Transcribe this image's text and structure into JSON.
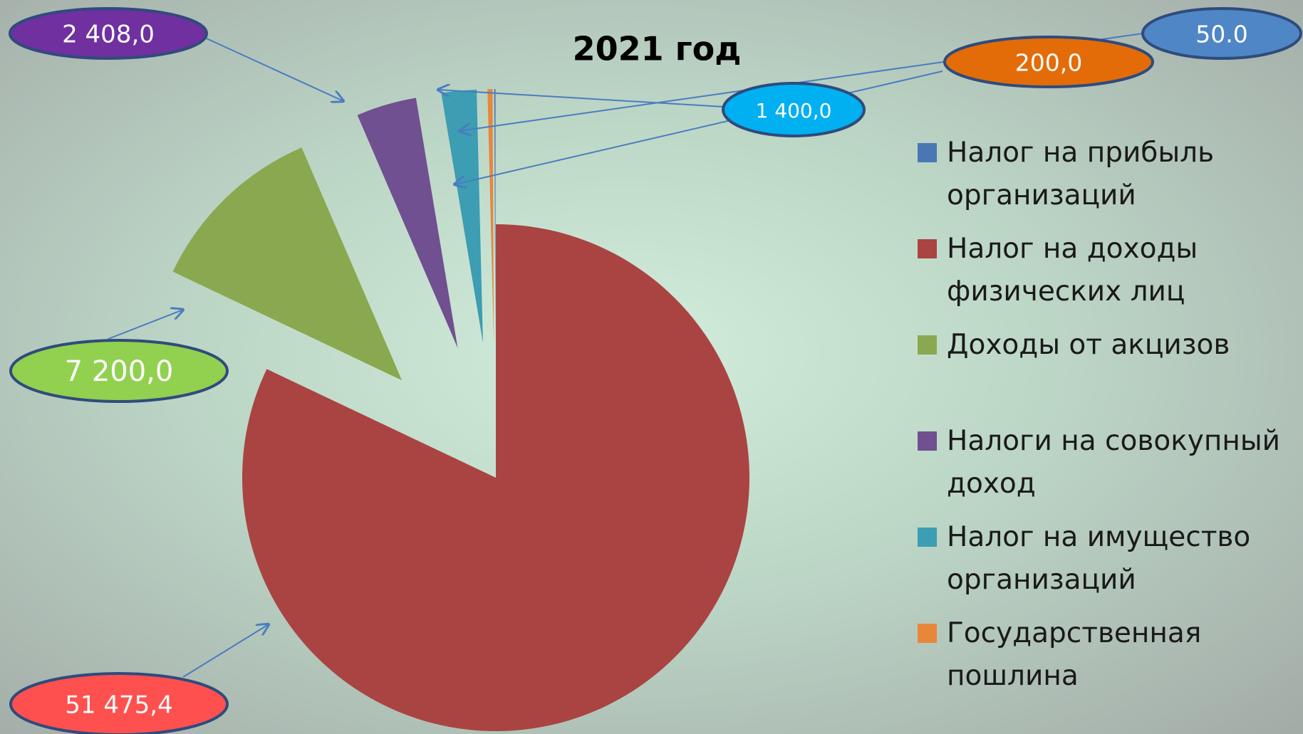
{
  "chart_data": {
    "type": "pie",
    "title": "2021 год",
    "categories": [
      "Налог на прибыль организаций",
      "Налог на доходы физических лиц",
      "Доходы от акцизов",
      "Налоги на совокупный доход",
      "Налог на имущество организаций",
      "Государственная пошлина"
    ],
    "values": [
      50.0,
      51475.4,
      7200.0,
      2408.0,
      1400.0,
      200.0
    ],
    "value_labels": [
      "50.0",
      "51 475,4",
      "7 200,0",
      "2 408,0",
      "1 400,0",
      "200,0"
    ],
    "colors": [
      "#4a77b4",
      "#a94442",
      "#8aa84f",
      "#705090",
      "#3c9db3",
      "#e8873a"
    ],
    "label_colors": [
      "#4f86c6",
      "#ff5050",
      "#92d050",
      "#7030a0",
      "#00b0f0",
      "#e36c09"
    ],
    "legend": "right"
  }
}
